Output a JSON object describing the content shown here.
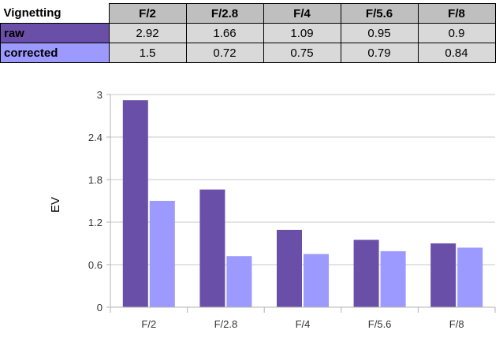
{
  "table": {
    "corner_label": "Vignetting",
    "columns": [
      "F/2",
      "F/2.8",
      "F/4",
      "F/5.6",
      "F/8"
    ],
    "rows": [
      {
        "label": "raw",
        "values": [
          "2.92",
          "1.66",
          "1.09",
          "0.95",
          "0.9"
        ]
      },
      {
        "label": "corrected",
        "values": [
          "1.5",
          "0.72",
          "0.75",
          "0.79",
          "0.84"
        ]
      }
    ]
  },
  "colors": {
    "raw": "#6a4fa8",
    "corrected": "#9c99ff",
    "grid": "#c8c8c8",
    "header_fill": "#bfbfbf",
    "cell_fill": "#d9d9d9"
  },
  "chart_data": {
    "type": "bar",
    "categories": [
      "F/2",
      "F/2.8",
      "F/4",
      "F/5.6",
      "F/8"
    ],
    "series": [
      {
        "name": "raw",
        "values": [
          2.92,
          1.66,
          1.09,
          0.95,
          0.9
        ]
      },
      {
        "name": "corrected",
        "values": [
          1.5,
          0.72,
          0.75,
          0.79,
          0.84
        ]
      }
    ],
    "title": "",
    "xlabel": "",
    "ylabel": "EV",
    "ylim": [
      0,
      3
    ],
    "yticks": [
      0,
      0.6,
      1.2,
      1.8,
      2.4,
      3
    ],
    "ytick_labels": [
      "0",
      "0.6",
      "1.2",
      "1.8",
      "2.4",
      "3"
    ],
    "grid": true,
    "legend": "none"
  }
}
